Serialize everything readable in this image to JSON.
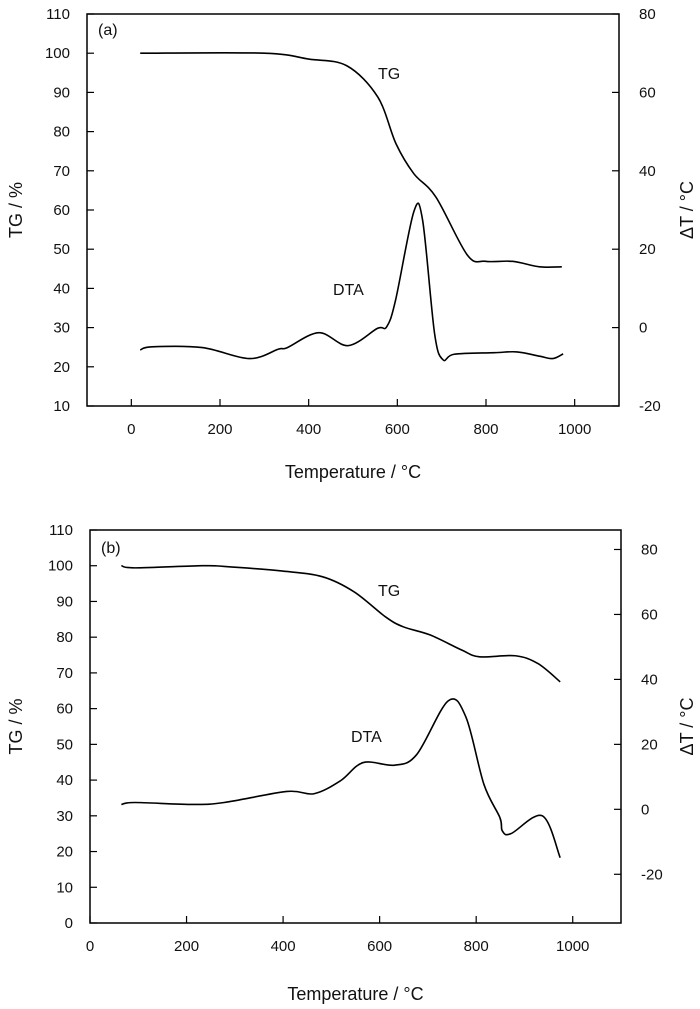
{
  "chart_data": [
    {
      "type": "line",
      "panel_label": "(a)",
      "xlabel": "Temperature / °C",
      "ylabel": "TG / %",
      "y2label": "ΔT / °C",
      "xlim": [
        -100,
        1100
      ],
      "ylim": [
        10,
        110
      ],
      "y2lim": [
        -20,
        80
      ],
      "xticks": [
        0,
        200,
        400,
        600,
        800,
        1000
      ],
      "yticks": [
        10,
        20,
        30,
        40,
        50,
        60,
        70,
        80,
        90,
        100,
        110
      ],
      "y2ticks": [
        -20,
        0,
        20,
        40,
        60,
        80
      ],
      "grid": false,
      "series": [
        {
          "name": "TG",
          "axis": "left",
          "x": [
            20,
            300,
            400,
            486,
            556,
            597,
            637,
            687,
            758,
            799,
            860,
            921,
            971
          ],
          "y": [
            100,
            100,
            98.5,
            96.8,
            88.8,
            76.9,
            69.3,
            63.3,
            48.5,
            46.9,
            46.9,
            45.5,
            45.5
          ]
        },
        {
          "name": "DTA",
          "axis": "right",
          "x": [
            20,
            47,
            160,
            266,
            332,
            352,
            423,
            489,
            555,
            576,
            596,
            637,
            657,
            684,
            703,
            728,
            819,
            870,
            921,
            951,
            974
          ],
          "y": [
            -5.7,
            -4.9,
            -5.1,
            -7.9,
            -5.5,
            -5.1,
            -1.3,
            -4.6,
            -0.2,
            0.2,
            7,
            29.5,
            27.4,
            -1.5,
            -8.2,
            -6.8,
            -6.4,
            -6.2,
            -7.3,
            -7.9,
            -6.7
          ]
        }
      ]
    },
    {
      "type": "line",
      "panel_label": "(b)",
      "xlabel": "Temperature / °C",
      "ylabel": "TG / %",
      "y2label": "ΔT / °C",
      "xlim": [
        0,
        1100
      ],
      "ylim": [
        0,
        110
      ],
      "y2lim": [
        -35,
        86
      ],
      "xticks": [
        0,
        200,
        400,
        600,
        800,
        1000
      ],
      "yticks": [
        0,
        10,
        20,
        30,
        40,
        50,
        60,
        70,
        80,
        90,
        100,
        110
      ],
      "y2ticks": [
        -20,
        0,
        20,
        40,
        60,
        80
      ],
      "grid": false,
      "series": [
        {
          "name": "TG",
          "axis": "left",
          "x": [
            65,
            93,
            232,
            278,
            399,
            482,
            547,
            612,
            649,
            705,
            770,
            807,
            881,
            928,
            974
          ],
          "y": [
            100,
            99.4,
            100,
            99.8,
            98.5,
            96.9,
            92.7,
            85.7,
            82.9,
            80.6,
            76.4,
            74.5,
            74.8,
            72.6,
            67.5
          ]
        },
        {
          "name": "DTA",
          "axis": "right",
          "x": [
            65,
            93,
            213,
            278,
            408,
            464,
            519,
            566,
            631,
            677,
            742,
            779,
            816,
            849,
            854,
            872,
            937,
            974
          ],
          "y": [
            1.5,
            2.1,
            1.5,
            2.1,
            5.5,
            4.8,
            8.8,
            14.4,
            13.6,
            16.9,
            33.4,
            28.3,
            7.7,
            -2.5,
            -6.6,
            -7.5,
            -2.0,
            -14.9
          ]
        }
      ]
    }
  ]
}
